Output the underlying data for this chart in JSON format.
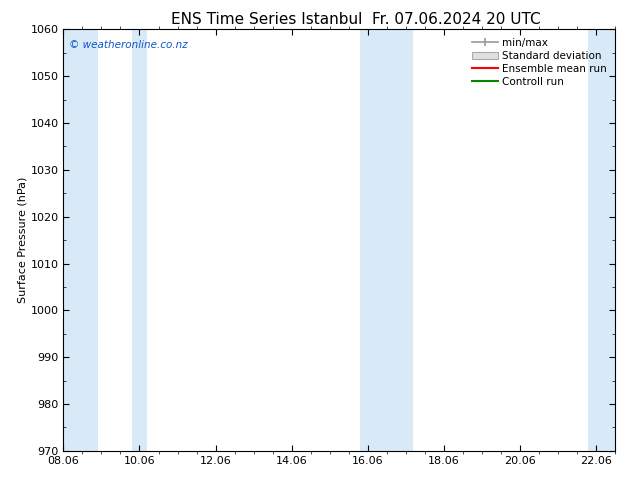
{
  "title": "ENS Time Series Istanbul",
  "title2": "Fr. 07.06.2024 20 UTC",
  "ylabel": "Surface Pressure (hPa)",
  "ylim": [
    970,
    1060
  ],
  "ytick_step": 10,
  "xlim": [
    0,
    14.5
  ],
  "xtick_labels": [
    "08.06",
    "10.06",
    "12.06",
    "14.06",
    "16.06",
    "18.06",
    "20.06",
    "22.06"
  ],
  "xtick_positions": [
    0.0,
    2.0,
    4.0,
    6.0,
    8.0,
    10.0,
    12.0,
    14.0
  ],
  "blue_bands": [
    [
      0.0,
      0.9
    ],
    [
      1.8,
      2.2
    ],
    [
      7.8,
      9.2
    ],
    [
      13.8,
      14.5
    ]
  ],
  "band_color": "#d8eaf7",
  "bg_color": "#ffffff",
  "plot_bg_color": "#ffffff",
  "watermark": "© weatheronline.co.nz",
  "legend_entries": [
    "min/max",
    "Standard deviation",
    "Ensemble mean run",
    "Controll run"
  ],
  "legend_colors_line": [
    "#999999",
    "#cccccc",
    "#ff0000",
    "#008800"
  ],
  "title_fontsize": 11,
  "label_fontsize": 8,
  "tick_fontsize": 8,
  "watermark_color": "#1155cc"
}
